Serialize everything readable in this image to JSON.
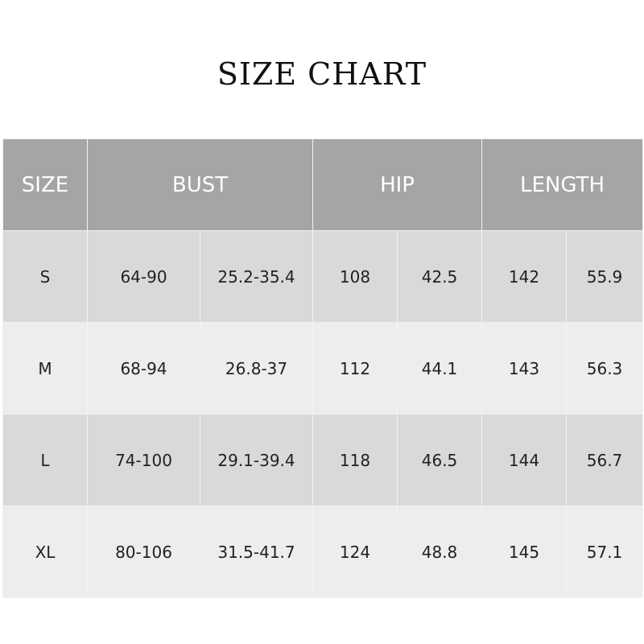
{
  "title": "SIZE CHART",
  "headers": [
    "SIZE",
    "BUST",
    "HIP",
    "LENGTH"
  ],
  "rows": [
    [
      "S",
      "64-90",
      "25.2-35.4",
      "108",
      "42.5",
      "142",
      "55.9"
    ],
    [
      "M",
      "68-94",
      "26.8-37",
      "112",
      "44.1",
      "143",
      "56.3"
    ],
    [
      "L",
      "74-100",
      "29.1-39.4",
      "118",
      "46.5",
      "144",
      "56.7"
    ],
    [
      "XL",
      "80-106",
      "31.5-41.7",
      "124",
      "48.8",
      "145",
      "57.1"
    ]
  ]
}
